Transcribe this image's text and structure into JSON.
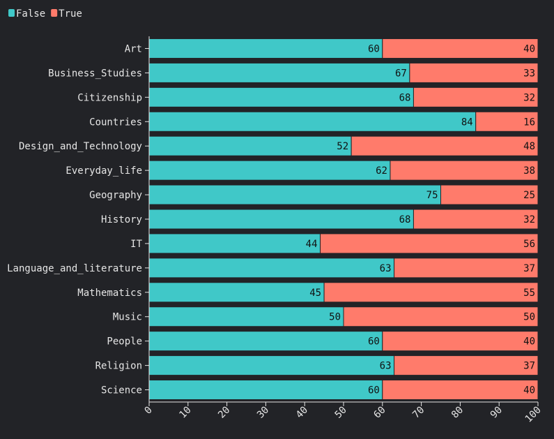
{
  "chart_data": {
    "type": "bar",
    "orientation": "horizontal",
    "stacked": true,
    "title": "",
    "xlabel": "",
    "ylabel": "",
    "xlim": [
      0,
      100
    ],
    "x_ticks": [
      "0",
      "10",
      "20",
      "30",
      "40",
      "50",
      "60",
      "70",
      "80",
      "90",
      "100"
    ],
    "legend_position": "top-left",
    "grid": false,
    "categories": [
      "Art",
      "Business_Studies",
      "Citizenship",
      "Countries",
      "Design_and_Technology",
      "Everyday_life",
      "Geography",
      "History",
      "IT",
      "Language_and_literature",
      "Mathematics",
      "Music",
      "People",
      "Religion",
      "Science"
    ],
    "series": [
      {
        "name": "False",
        "color": "#40c8c8",
        "values": [
          60,
          67,
          68,
          84,
          52,
          62,
          75,
          68,
          44,
          63,
          45,
          50,
          60,
          63,
          60
        ]
      },
      {
        "name": "True",
        "color": "#ff7b6b",
        "values": [
          40,
          33,
          32,
          16,
          48,
          38,
          25,
          32,
          56,
          37,
          55,
          50,
          40,
          37,
          40
        ]
      }
    ]
  }
}
